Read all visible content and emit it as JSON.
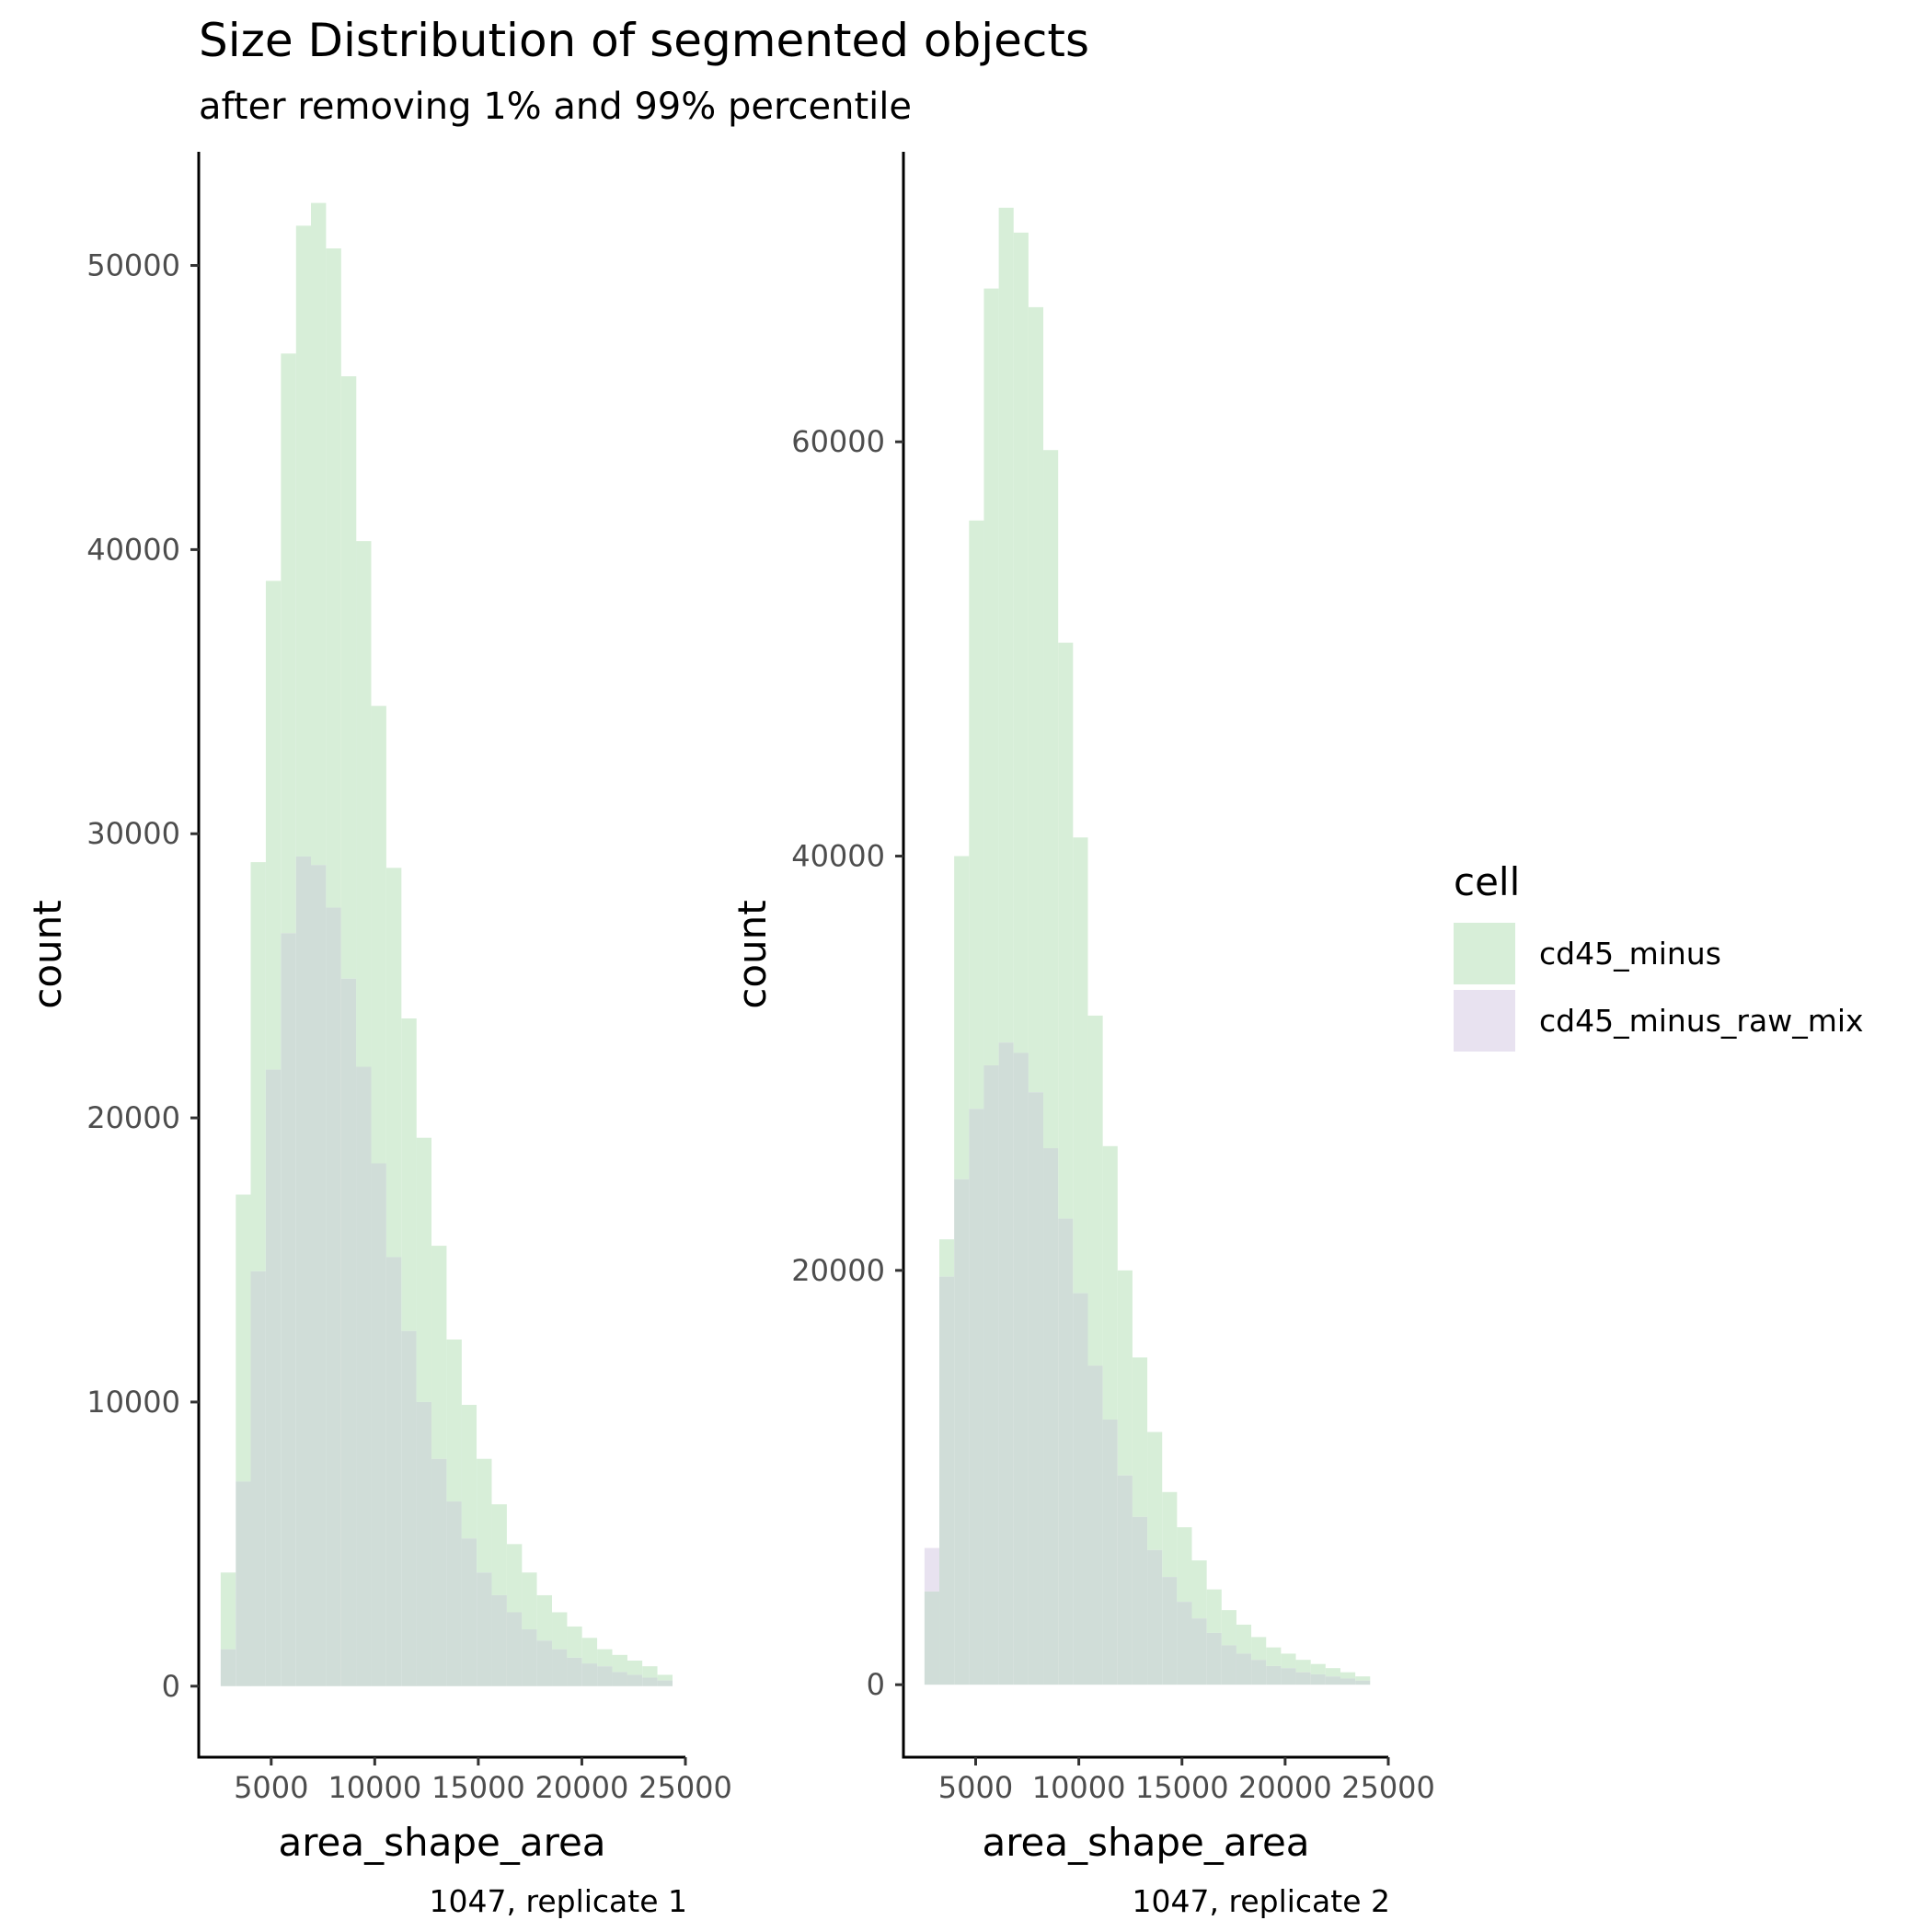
{
  "title": "Size Distribution of segmented objects",
  "subtitle": "after removing 1% and 99% percentile",
  "legend": {
    "title": "cell",
    "entries": [
      {
        "label": "cd45_minus",
        "color": "#d7eed8"
      },
      {
        "label": "cd45_minus_raw_mix",
        "color": "#e8e2f0"
      }
    ],
    "placement": "right"
  },
  "overlap_color": "#d0ddd8",
  "chart_data": [
    {
      "type": "histogram",
      "xlabel": "area_shape_area",
      "ylabel": "count",
      "caption": "1047, replicate 1",
      "xlim": [
        1500,
        25000
      ],
      "ylim": [
        -2500,
        54000
      ],
      "xticks": [
        5000,
        10000,
        15000,
        20000,
        25000
      ],
      "xtick_labels": [
        "5000",
        "10000",
        "15000",
        "20000",
        "25000"
      ],
      "yticks": [
        0,
        10000,
        20000,
        30000,
        40000,
        50000
      ],
      "ytick_labels": [
        "0",
        "10000",
        "20000",
        "30000",
        "40000",
        "50000"
      ],
      "bin_starts": [
        2560,
        3290,
        4010,
        4740,
        5470,
        6200,
        6920,
        7650,
        8380,
        9100,
        9830,
        10560,
        11290,
        12010,
        12740,
        13470,
        14190,
        14920,
        15650,
        16380,
        17100,
        17830,
        18560,
        19280,
        20010,
        20740,
        21470,
        22190,
        22920,
        23650
      ],
      "bin_width": 728,
      "series": [
        {
          "name": "cd45_minus",
          "values": [
            4000,
            17300,
            29000,
            38900,
            46900,
            51400,
            52200,
            50600,
            46100,
            40300,
            34500,
            28800,
            23500,
            19300,
            15500,
            12200,
            9900,
            8000,
            6400,
            5000,
            4000,
            3200,
            2600,
            2100,
            1700,
            1300,
            1100,
            900,
            700,
            400
          ]
        },
        {
          "name": "cd45_minus_raw_mix",
          "values": [
            1300,
            7200,
            14600,
            21700,
            26500,
            29200,
            28900,
            27400,
            24900,
            21800,
            18400,
            15100,
            12500,
            10000,
            8000,
            6500,
            5200,
            4000,
            3200,
            2600,
            2000,
            1600,
            1300,
            1000,
            800,
            700,
            500,
            400,
            300,
            200
          ]
        }
      ]
    },
    {
      "type": "histogram",
      "xlabel": "area_shape_area",
      "ylabel": "count",
      "caption": "1047, replicate 2",
      "xlim": [
        1500,
        25000
      ],
      "ylim": [
        -3500,
        74000
      ],
      "xticks": [
        5000,
        10000,
        15000,
        20000,
        25000
      ],
      "xtick_labels": [
        "5000",
        "10000",
        "15000",
        "20000",
        "25000"
      ],
      "yticks": [
        0,
        20000,
        40000,
        60000
      ],
      "ytick_labels": [
        "0",
        "20000",
        "40000",
        "60000"
      ],
      "bin_starts": [
        2520,
        3240,
        3960,
        4680,
        5400,
        6120,
        6840,
        7560,
        8280,
        9000,
        9720,
        10440,
        11160,
        11880,
        12600,
        13320,
        14040,
        14760,
        15480,
        16200,
        16920,
        17640,
        18360,
        19080,
        19800,
        20520,
        21240,
        21960,
        22680,
        23400,
        24120
      ],
      "bin_width": 720,
      "series": [
        {
          "name": "cd45_minus",
          "values": [
            4500,
            21500,
            40000,
            56200,
            67400,
            71300,
            70100,
            66500,
            59600,
            50300,
            40900,
            32300,
            26000,
            20000,
            15800,
            12200,
            9300,
            7600,
            6000,
            4600,
            3600,
            2900,
            2300,
            1800,
            1500,
            1200,
            1000,
            800,
            600,
            400,
            0
          ]
        },
        {
          "name": "cd45_minus_raw_mix",
          "values": [
            6600,
            19700,
            24400,
            27800,
            29900,
            31000,
            30500,
            28600,
            25900,
            22500,
            18900,
            15400,
            12800,
            10100,
            8100,
            6500,
            5200,
            4000,
            3200,
            2500,
            1900,
            1500,
            1200,
            900,
            800,
            600,
            500,
            400,
            300,
            200,
            0
          ]
        }
      ]
    }
  ]
}
